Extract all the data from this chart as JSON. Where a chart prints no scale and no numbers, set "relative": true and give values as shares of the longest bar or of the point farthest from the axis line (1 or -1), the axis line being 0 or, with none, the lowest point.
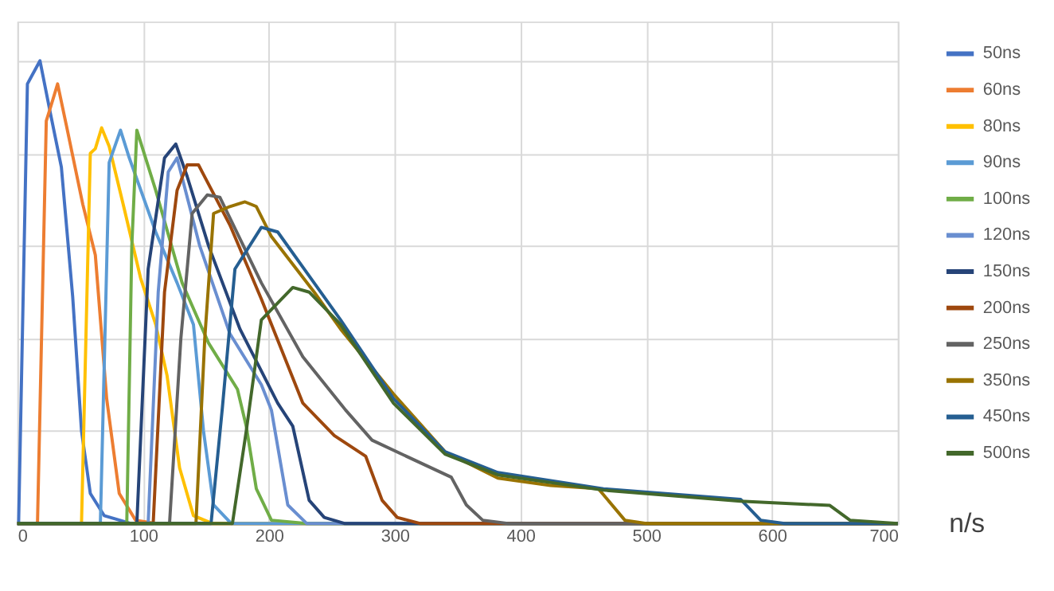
{
  "chart_data": {
    "type": "line",
    "relative": true,
    "xlabel": "n/s",
    "xlim": [
      0,
      700
    ],
    "xticks": [
      0,
      100,
      200,
      300,
      400,
      500,
      600,
      700
    ],
    "grid": true,
    "legend": "right",
    "marker": "none",
    "line_style": "solid",
    "series": [
      {
        "name": "50ns",
        "color": "#4472c4",
        "x": [
          0,
          1,
          8,
          10,
          18,
          26,
          35,
          44,
          51,
          58,
          69,
          90,
          700
        ],
        "values": [
          0,
          0,
          0.95,
          0.96,
          1.0,
          0.89,
          0.77,
          0.49,
          0.2,
          0.065,
          0.017,
          0,
          0
        ]
      },
      {
        "name": "60ns",
        "color": "#ed7d31",
        "x": [
          0,
          16,
          23,
          27,
          32,
          39,
          52,
          62,
          71,
          81,
          94,
          110,
          700
        ],
        "values": [
          0,
          0,
          0.87,
          0.905,
          0.95,
          0.86,
          0.69,
          0.58,
          0.27,
          0.065,
          0.007,
          0,
          0
        ]
      },
      {
        "name": "80ns",
        "color": "#ffc000",
        "x": [
          0,
          51,
          58,
          62,
          67,
          73,
          85,
          98,
          110,
          119,
          129,
          140,
          155,
          700
        ],
        "values": [
          0,
          0,
          0.8,
          0.81,
          0.855,
          0.815,
          0.68,
          0.53,
          0.43,
          0.32,
          0.12,
          0.017,
          0,
          0
        ]
      },
      {
        "name": "90ns",
        "color": "#5b9bd5",
        "x": [
          0,
          66,
          73,
          82,
          89,
          110,
          127,
          140,
          148,
          156,
          170,
          700
        ],
        "values": [
          0,
          0,
          0.78,
          0.85,
          0.79,
          0.63,
          0.52,
          0.43,
          0.2,
          0.04,
          0,
          0
        ]
      },
      {
        "name": "100ns",
        "color": "#70ad47",
        "x": [
          0,
          87,
          91,
          95,
          110,
          131,
          152,
          175,
          182,
          190,
          202,
          230,
          700
        ],
        "values": [
          0,
          0,
          0.6,
          0.85,
          0.72,
          0.52,
          0.39,
          0.29,
          0.21,
          0.075,
          0.007,
          0,
          0
        ]
      },
      {
        "name": "120ns",
        "color": "#698ed0",
        "x": [
          0,
          104,
          112,
          120,
          127,
          145,
          169,
          194,
          202,
          215,
          230,
          700
        ],
        "values": [
          0,
          0,
          0.5,
          0.76,
          0.79,
          0.6,
          0.41,
          0.3,
          0.245,
          0.04,
          0,
          0
        ]
      },
      {
        "name": "150ns",
        "color": "#264478",
        "x": [
          0,
          95,
          104,
          117,
          126,
          135,
          152,
          177,
          207,
          219,
          232,
          244,
          260,
          700
        ],
        "values": [
          0,
          0,
          0.55,
          0.79,
          0.82,
          0.75,
          0.6,
          0.42,
          0.26,
          0.21,
          0.05,
          0.013,
          0,
          0
        ]
      },
      {
        "name": "200ns",
        "color": "#9e480e",
        "x": [
          0,
          108,
          117,
          127,
          135,
          144,
          169,
          194,
          227,
          252,
          277,
          290,
          302,
          320,
          700
        ],
        "values": [
          0,
          0,
          0.5,
          0.72,
          0.775,
          0.775,
          0.645,
          0.485,
          0.26,
          0.19,
          0.145,
          0.05,
          0.013,
          0,
          0
        ]
      },
      {
        "name": "250ns",
        "color": "#636363",
        "x": [
          0,
          121,
          130,
          139,
          151,
          161,
          194,
          227,
          261,
          282,
          311,
          345,
          357,
          370,
          390,
          700
        ],
        "values": [
          0,
          0,
          0.4,
          0.67,
          0.71,
          0.705,
          0.52,
          0.36,
          0.245,
          0.18,
          0.143,
          0.1,
          0.04,
          0.007,
          0,
          0
        ]
      },
      {
        "name": "350ns",
        "color": "#997300",
        "x": [
          0,
          142,
          149,
          156,
          169,
          181,
          190,
          202,
          236,
          257,
          299,
          340,
          382,
          424,
          462,
          483,
          500,
          700
        ],
        "values": [
          0,
          0,
          0.4,
          0.67,
          0.685,
          0.695,
          0.685,
          0.62,
          0.5,
          0.42,
          0.28,
          0.155,
          0.098,
          0.082,
          0.075,
          0.007,
          0,
          0
        ]
      },
      {
        "name": "450ns",
        "color": "#255e91",
        "x": [
          0,
          154,
          163,
          173,
          194,
          207,
          228,
          257,
          299,
          340,
          382,
          466,
          575,
          591,
          610,
          700
        ],
        "values": [
          0,
          0,
          0.25,
          0.55,
          0.64,
          0.63,
          0.55,
          0.44,
          0.27,
          0.155,
          0.11,
          0.075,
          0.052,
          0.007,
          0,
          0
        ]
      },
      {
        "name": "500ns",
        "color": "#43682b",
        "x": [
          0,
          171,
          182,
          194,
          219,
          232,
          257,
          299,
          340,
          382,
          466,
          575,
          646,
          662,
          700
        ],
        "values": [
          0,
          0,
          0.2,
          0.44,
          0.51,
          0.5,
          0.43,
          0.26,
          0.15,
          0.105,
          0.072,
          0.048,
          0.039,
          0.007,
          0
        ]
      }
    ]
  }
}
